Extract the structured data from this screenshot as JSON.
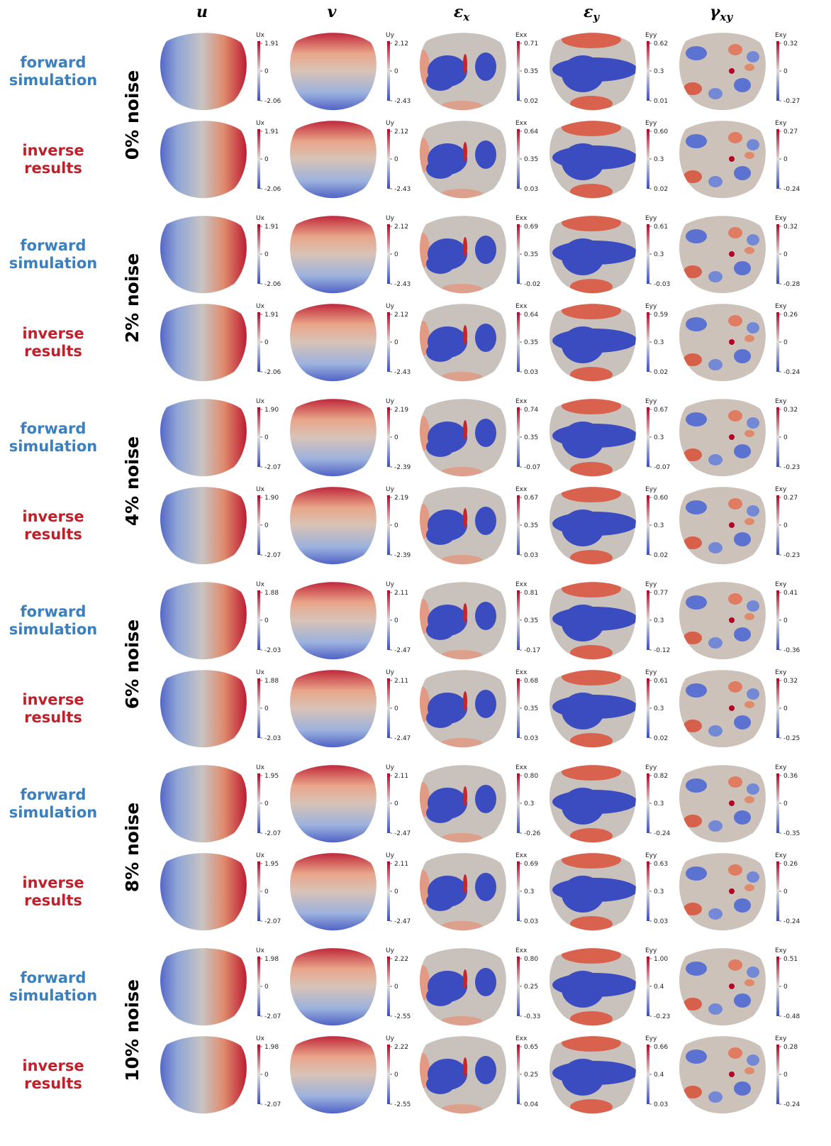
{
  "headers": [
    {
      "main": "u"
    },
    {
      "main": "v"
    },
    {
      "main": "ε",
      "sub": "x"
    },
    {
      "main": "ε",
      "sub": "y"
    },
    {
      "main": "γ",
      "sub": "xy"
    }
  ],
  "colorbar_titles": [
    "Ux",
    "Uy",
    "Exx",
    "Eyy",
    "Exy"
  ],
  "groups": [
    {
      "noise": "0% noise",
      "rows": [
        {
          "label": [
            "forward",
            "simulation"
          ],
          "colorbars": [
            [
              "1.91",
              "0",
              "-2.06"
            ],
            [
              "2.12",
              "0",
              "-2.43"
            ],
            [
              "0.71",
              "0.35",
              "0.02"
            ],
            [
              "0.62",
              "0.3",
              "0.01"
            ],
            [
              "0.32",
              "0",
              "-0.27"
            ]
          ]
        },
        {
          "label": [
            "inverse",
            "results"
          ],
          "colorbars": [
            [
              "1.91",
              "0",
              "-2.06"
            ],
            [
              "2.12",
              "0",
              "-2.43"
            ],
            [
              "0.64",
              "0.35",
              "0.03"
            ],
            [
              "0.60",
              "0.3",
              "0.02"
            ],
            [
              "0.27",
              "0",
              "-0.24"
            ]
          ]
        }
      ]
    },
    {
      "noise": "2% noise",
      "rows": [
        {
          "label": [
            "forward",
            "simulation"
          ],
          "colorbars": [
            [
              "1.91",
              "0",
              "-2.06"
            ],
            [
              "2.12",
              "0",
              "-2.43"
            ],
            [
              "0.69",
              "0.35",
              "-0.02"
            ],
            [
              "0.61",
              "0.3",
              "-0.03"
            ],
            [
              "0.32",
              "0",
              "-0.28"
            ]
          ]
        },
        {
          "label": [
            "inverse",
            "results"
          ],
          "colorbars": [
            [
              "1.91",
              "0",
              "-2.06"
            ],
            [
              "2.12",
              "0",
              "-2.43"
            ],
            [
              "0.64",
              "0.35",
              "0.03"
            ],
            [
              "0.59",
              "0.3",
              "0.02"
            ],
            [
              "0.26",
              "0",
              "-0.24"
            ]
          ]
        }
      ]
    },
    {
      "noise": "4% noise",
      "rows": [
        {
          "label": [
            "forward",
            "simulation"
          ],
          "colorbars": [
            [
              "1.90",
              "0",
              "-2.07"
            ],
            [
              "2.19",
              "0",
              "-2.39"
            ],
            [
              "0.74",
              "0.35",
              "-0.07"
            ],
            [
              "0.67",
              "0.3",
              "-0.07"
            ],
            [
              "0.32",
              "0",
              "-0.23"
            ]
          ]
        },
        {
          "label": [
            "inverse",
            "results"
          ],
          "colorbars": [
            [
              "1.90",
              "0",
              "-2.07"
            ],
            [
              "2.19",
              "0",
              "-2.39"
            ],
            [
              "0.67",
              "0.35",
              "0.03"
            ],
            [
              "0.60",
              "0.3",
              "0.02"
            ],
            [
              "0.27",
              "0",
              "-0.23"
            ]
          ]
        }
      ]
    },
    {
      "noise": "6% noise",
      "rows": [
        {
          "label": [
            "forward",
            "simulation"
          ],
          "colorbars": [
            [
              "1.88",
              "0",
              "-2.03"
            ],
            [
              "2.11",
              "0",
              "-2.47"
            ],
            [
              "0.81",
              "0.35",
              "-0.17"
            ],
            [
              "0.77",
              "0.3",
              "-0.12"
            ],
            [
              "0.41",
              "0",
              "-0.36"
            ]
          ]
        },
        {
          "label": [
            "inverse",
            "results"
          ],
          "colorbars": [
            [
              "1.88",
              "0",
              "-2.03"
            ],
            [
              "2.11",
              "0",
              "-2.47"
            ],
            [
              "0.68",
              "0.35",
              "0.03"
            ],
            [
              "0.61",
              "0.3",
              "0.02"
            ],
            [
              "0.32",
              "0",
              "-0.25"
            ]
          ]
        }
      ]
    },
    {
      "noise": "8% noise",
      "rows": [
        {
          "label": [
            "forward",
            "simulation"
          ],
          "colorbars": [
            [
              "1.95",
              "0",
              "-2.07"
            ],
            [
              "2.11",
              "0",
              "-2.47"
            ],
            [
              "0.80",
              "0.3",
              "-0.26"
            ],
            [
              "0.82",
              "0.3",
              "-0.24"
            ],
            [
              "0.36",
              "0",
              "-0.35"
            ]
          ]
        },
        {
          "label": [
            "inverse",
            "results"
          ],
          "colorbars": [
            [
              "1.95",
              "0",
              "-2.07"
            ],
            [
              "2.11",
              "0",
              "-2.47"
            ],
            [
              "0.69",
              "0.3",
              "0.03"
            ],
            [
              "0.63",
              "0.3",
              "0.03"
            ],
            [
              "0.26",
              "0",
              "-0.24"
            ]
          ]
        }
      ]
    },
    {
      "noise": "10% noise",
      "rows": [
        {
          "label": [
            "forward",
            "simulation"
          ],
          "colorbars": [
            [
              "1.98",
              "0",
              "-2.07"
            ],
            [
              "2.22",
              "0",
              "-2.55"
            ],
            [
              "0.80",
              "0.25",
              "-0.33"
            ],
            [
              "1.00",
              "0.4",
              "-0.23"
            ],
            [
              "0.51",
              "0",
              "-0.48"
            ]
          ]
        },
        {
          "label": [
            "inverse",
            "results"
          ],
          "colorbars": [
            [
              "1.98",
              "0",
              "-2.07"
            ],
            [
              "2.22",
              "0",
              "-2.55"
            ],
            [
              "0.65",
              "0.25",
              "0.04"
            ],
            [
              "0.66",
              "0.4",
              "0.03"
            ],
            [
              "0.28",
              "0",
              "-0.24"
            ]
          ]
        }
      ]
    }
  ]
}
